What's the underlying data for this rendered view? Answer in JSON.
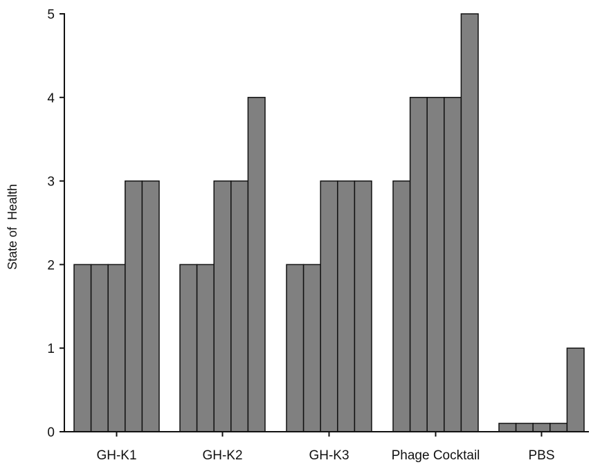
{
  "chart_data": {
    "type": "bar",
    "ylabel": "State of  Health",
    "xlabel": "",
    "ylim": [
      0,
      5
    ],
    "yticks": [
      "0",
      "1",
      "2",
      "3",
      "4",
      "5"
    ],
    "groups": [
      {
        "label": "GH-K1",
        "values": [
          2,
          2,
          2,
          3,
          3
        ]
      },
      {
        "label": "GH-K2",
        "values": [
          2,
          2,
          3,
          3,
          4
        ]
      },
      {
        "label": "GH-K3",
        "values": [
          2,
          2,
          3,
          3,
          3
        ]
      },
      {
        "label": "Phage Cocktail",
        "values": [
          3,
          4,
          4,
          4,
          5
        ]
      },
      {
        "label": "PBS",
        "values": [
          0.1,
          0.1,
          0.1,
          0.1,
          1
        ]
      }
    ],
    "bar_color": "#808080",
    "bar_edge_color": "#111111",
    "grid": false,
    "legend": "none"
  }
}
